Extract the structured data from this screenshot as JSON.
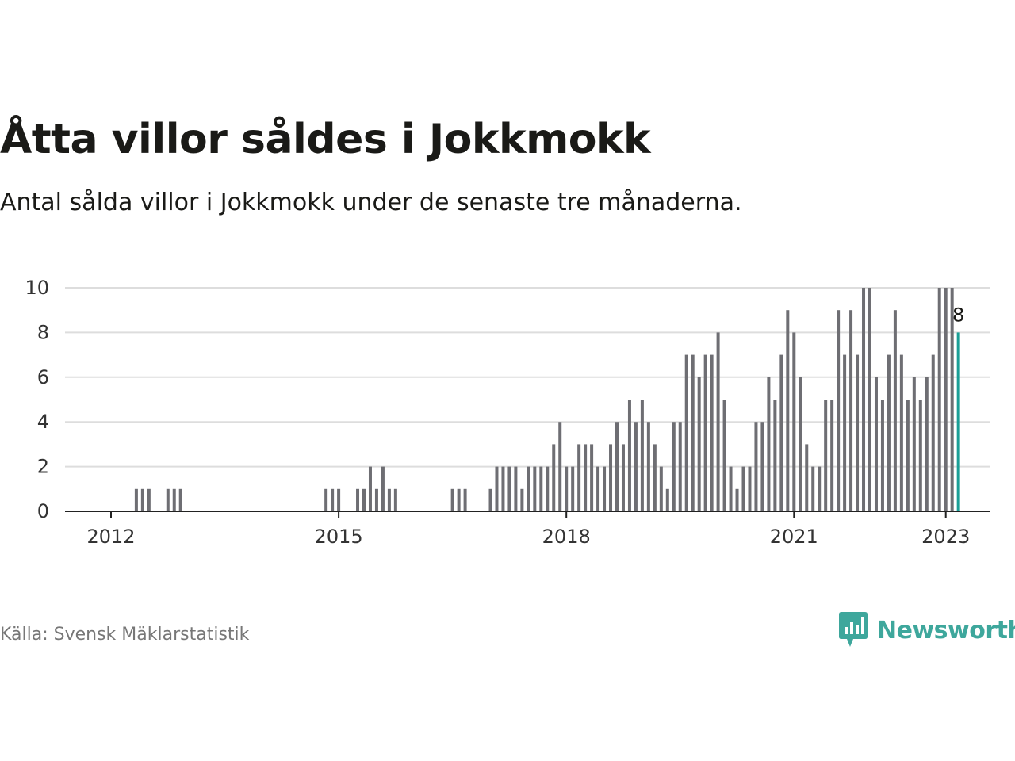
{
  "header": {
    "title": "Åtta villor såldes i Jokkmokk",
    "subtitle": "Antal sålda villor i Jokkmokk under de senaste tre månaderna."
  },
  "footer": {
    "source": "Källa: Svensk Mäklarstatistik",
    "brand": "Newsworthy"
  },
  "colors": {
    "bar": "#6e6e73",
    "highlight": "#1a9e96",
    "grid": "#dddddd",
    "axis": "#222222",
    "brand": "#3ea79c"
  },
  "chart_data": {
    "type": "bar",
    "title": "Åtta villor såldes i Jokkmokk",
    "xlabel": "",
    "ylabel": "",
    "ylim": [
      0,
      10
    ],
    "yticks": [
      0,
      2,
      4,
      6,
      8,
      10
    ],
    "grid": true,
    "start": "2012-01",
    "xticks": [
      {
        "label": "2012",
        "date": "2012-01"
      },
      {
        "label": "2015",
        "date": "2015-01"
      },
      {
        "label": "2018",
        "date": "2018-01"
      },
      {
        "label": "2021",
        "date": "2021-01"
      },
      {
        "label": "2023",
        "date": "2023-01"
      }
    ],
    "values": [
      0,
      0,
      0,
      0,
      1,
      1,
      1,
      0,
      0,
      1,
      1,
      1,
      0,
      0,
      0,
      0,
      0,
      0,
      0,
      0,
      0,
      0,
      0,
      0,
      0,
      0,
      0,
      0,
      0,
      0,
      0,
      0,
      0,
      0,
      1,
      1,
      1,
      0,
      0,
      1,
      1,
      2,
      1,
      2,
      1,
      1,
      0,
      0,
      0,
      0,
      0,
      0,
      0,
      0,
      1,
      1,
      1,
      0,
      0,
      0,
      1,
      2,
      2,
      2,
      2,
      1,
      2,
      2,
      2,
      2,
      3,
      4,
      2,
      2,
      3,
      3,
      3,
      2,
      2,
      3,
      4,
      3,
      5,
      4,
      5,
      4,
      3,
      2,
      1,
      4,
      4,
      7,
      7,
      6,
      7,
      7,
      8,
      5,
      2,
      1,
      2,
      2,
      4,
      4,
      6,
      5,
      7,
      9,
      8,
      6,
      3,
      2,
      2,
      5,
      5,
      9,
      7,
      9,
      7,
      10,
      10,
      6,
      5,
      7,
      9,
      7,
      5,
      6,
      5,
      6,
      7,
      10,
      10,
      10,
      8
    ],
    "highlight_last": true,
    "highlight_value_label": "8"
  }
}
